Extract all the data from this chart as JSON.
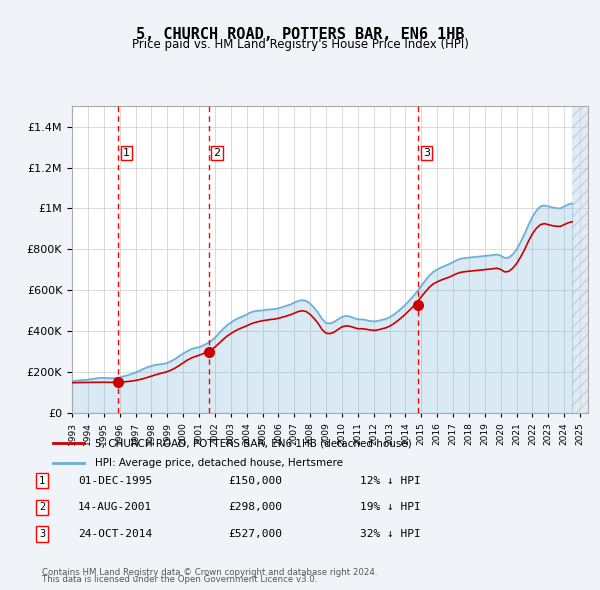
{
  "title": "5, CHURCH ROAD, POTTERS BAR, EN6 1HB",
  "subtitle": "Price paid vs. HM Land Registry's House Price Index (HPI)",
  "legend_line1": "5, CHURCH ROAD, POTTERS BAR, EN6 1HB (detached house)",
  "legend_line2": "HPI: Average price, detached house, Hertsmere",
  "footer1": "Contains HM Land Registry data © Crown copyright and database right 2024.",
  "footer2": "This data is licensed under the Open Government Licence v3.0.",
  "transactions": [
    {
      "num": 1,
      "date": "01-DEC-1995",
      "price": 150000,
      "note": "12% ↓ HPI",
      "year": 1995.92
    },
    {
      "num": 2,
      "date": "14-AUG-2001",
      "price": 298000,
      "note": "19% ↓ HPI",
      "year": 2001.62
    },
    {
      "num": 3,
      "date": "24-OCT-2014",
      "price": 527000,
      "note": "32% ↓ HPI",
      "year": 2014.81
    }
  ],
  "hpi_color": "#6baed6",
  "price_color": "#cc0000",
  "hatch_color": "#c6d9e8",
  "background_color": "#f0f4f8",
  "plot_bg": "#ffffff",
  "ylim": [
    0,
    1500000
  ],
  "xlim_start": 1993,
  "xlim_end": 2025.5,
  "hpi_data": {
    "years": [
      1993.0,
      1993.25,
      1993.5,
      1993.75,
      1994.0,
      1994.25,
      1994.5,
      1994.75,
      1995.0,
      1995.25,
      1995.5,
      1995.75,
      1996.0,
      1996.25,
      1996.5,
      1996.75,
      1997.0,
      1997.25,
      1997.5,
      1997.75,
      1998.0,
      1998.25,
      1998.5,
      1998.75,
      1999.0,
      1999.25,
      1999.5,
      1999.75,
      2000.0,
      2000.25,
      2000.5,
      2000.75,
      2001.0,
      2001.25,
      2001.5,
      2001.75,
      2002.0,
      2002.25,
      2002.5,
      2002.75,
      2003.0,
      2003.25,
      2003.5,
      2003.75,
      2004.0,
      2004.25,
      2004.5,
      2004.75,
      2005.0,
      2005.25,
      2005.5,
      2005.75,
      2006.0,
      2006.25,
      2006.5,
      2006.75,
      2007.0,
      2007.25,
      2007.5,
      2007.75,
      2008.0,
      2008.25,
      2008.5,
      2008.75,
      2009.0,
      2009.25,
      2009.5,
      2009.75,
      2010.0,
      2010.25,
      2010.5,
      2010.75,
      2011.0,
      2011.25,
      2011.5,
      2011.75,
      2012.0,
      2012.25,
      2012.5,
      2012.75,
      2013.0,
      2013.25,
      2013.5,
      2013.75,
      2014.0,
      2014.25,
      2014.5,
      2014.75,
      2015.0,
      2015.25,
      2015.5,
      2015.75,
      2016.0,
      2016.25,
      2016.5,
      2016.75,
      2017.0,
      2017.25,
      2017.5,
      2017.75,
      2018.0,
      2018.25,
      2018.5,
      2018.75,
      2019.0,
      2019.25,
      2019.5,
      2019.75,
      2020.0,
      2020.25,
      2020.5,
      2020.75,
      2021.0,
      2021.25,
      2021.5,
      2021.75,
      2022.0,
      2022.25,
      2022.5,
      2022.75,
      2023.0,
      2023.25,
      2023.5,
      2023.75,
      2024.0,
      2024.25,
      2024.5
    ],
    "values": [
      155000,
      158000,
      160000,
      161000,
      163000,
      166000,
      169000,
      172000,
      172000,
      171000,
      170000,
      171000,
      174000,
      179000,
      185000,
      191000,
      198000,
      207000,
      216000,
      224000,
      230000,
      235000,
      238000,
      240000,
      245000,
      254000,
      265000,
      278000,
      291000,
      302000,
      312000,
      318000,
      322000,
      330000,
      340000,
      352000,
      368000,
      390000,
      410000,
      428000,
      442000,
      455000,
      465000,
      472000,
      482000,
      492000,
      498000,
      500000,
      502000,
      505000,
      507000,
      508000,
      512000,
      518000,
      525000,
      530000,
      540000,
      548000,
      552000,
      548000,
      535000,
      515000,
      490000,
      460000,
      440000,
      438000,
      445000,
      458000,
      470000,
      475000,
      472000,
      465000,
      458000,
      458000,
      455000,
      450000,
      448000,
      450000,
      455000,
      460000,
      468000,
      480000,
      495000,
      512000,
      530000,
      550000,
      572000,
      595000,
      622000,
      648000,
      672000,
      690000,
      702000,
      712000,
      720000,
      728000,
      738000,
      748000,
      755000,
      758000,
      760000,
      762000,
      764000,
      766000,
      768000,
      770000,
      772000,
      775000,
      770000,
      758000,
      760000,
      775000,
      800000,
      835000,
      875000,
      920000,
      960000,
      990000,
      1010000,
      1015000,
      1010000,
      1005000,
      1002000,
      1000000,
      1010000,
      1020000,
      1025000
    ]
  },
  "price_data": {
    "years": [
      1993.0,
      1993.25,
      1993.5,
      1993.75,
      1994.0,
      1994.25,
      1994.5,
      1994.75,
      1995.0,
      1995.25,
      1995.5,
      1995.75,
      1996.0,
      1996.25,
      1996.5,
      1996.75,
      1997.0,
      1997.25,
      1997.5,
      1997.75,
      1998.0,
      1998.25,
      1998.5,
      1998.75,
      1999.0,
      1999.25,
      1999.5,
      1999.75,
      2000.0,
      2000.25,
      2000.5,
      2000.75,
      2001.0,
      2001.25,
      2001.5,
      2001.75,
      2002.0,
      2002.25,
      2002.5,
      2002.75,
      2003.0,
      2003.25,
      2003.5,
      2003.75,
      2004.0,
      2004.25,
      2004.5,
      2004.75,
      2005.0,
      2005.25,
      2005.5,
      2005.75,
      2006.0,
      2006.25,
      2006.5,
      2006.75,
      2007.0,
      2007.25,
      2007.5,
      2007.75,
      2008.0,
      2008.25,
      2008.5,
      2008.75,
      2009.0,
      2009.25,
      2009.5,
      2009.75,
      2010.0,
      2010.25,
      2010.5,
      2010.75,
      2011.0,
      2011.25,
      2011.5,
      2011.75,
      2012.0,
      2012.25,
      2012.5,
      2012.75,
      2013.0,
      2013.25,
      2013.5,
      2013.75,
      2014.0,
      2014.25,
      2014.5,
      2014.75,
      2015.0,
      2015.25,
      2015.5,
      2015.75,
      2016.0,
      2016.25,
      2016.5,
      2016.75,
      2017.0,
      2017.25,
      2017.5,
      2017.75,
      2018.0,
      2018.25,
      2018.5,
      2018.75,
      2019.0,
      2019.25,
      2019.5,
      2019.75,
      2020.0,
      2020.25,
      2020.5,
      2020.75,
      2021.0,
      2021.25,
      2021.5,
      2021.75,
      2022.0,
      2022.25,
      2022.5,
      2022.75,
      2023.0,
      2023.25,
      2023.5,
      2023.75,
      2024.0,
      2024.25,
      2024.5
    ],
    "values": [
      148000,
      148500,
      149000,
      149200,
      149500,
      149800,
      150000,
      150200,
      150300,
      150100,
      149800,
      150000,
      151000,
      152000,
      154000,
      156000,
      159000,
      163000,
      168000,
      174000,
      180000,
      186000,
      192000,
      197000,
      202000,
      210000,
      220000,
      232000,
      245000,
      258000,
      268000,
      276000,
      282000,
      290000,
      298000,
      308000,
      322000,
      340000,
      358000,
      375000,
      388000,
      400000,
      410000,
      418000,
      426000,
      435000,
      442000,
      447000,
      451000,
      454000,
      457000,
      459000,
      463000,
      468000,
      474000,
      480000,
      488000,
      496000,
      500000,
      496000,
      482000,
      462000,
      438000,
      408000,
      390000,
      388000,
      395000,
      408000,
      421000,
      426000,
      424000,
      418000,
      412000,
      412000,
      410000,
      406000,
      404000,
      406000,
      411000,
      416000,
      424000,
      436000,
      450000,
      466000,
      483000,
      502000,
      522000,
      544000,
      568000,
      592000,
      614000,
      631000,
      641000,
      650000,
      657000,
      664000,
      673000,
      682000,
      688000,
      691000,
      693000,
      695000,
      697000,
      699000,
      701000,
      703000,
      705000,
      708000,
      702000,
      690000,
      692000,
      707000,
      730000,
      762000,
      798000,
      840000,
      876000,
      903000,
      921000,
      926000,
      921000,
      916000,
      913000,
      912000,
      921000,
      930000,
      935000
    ]
  }
}
